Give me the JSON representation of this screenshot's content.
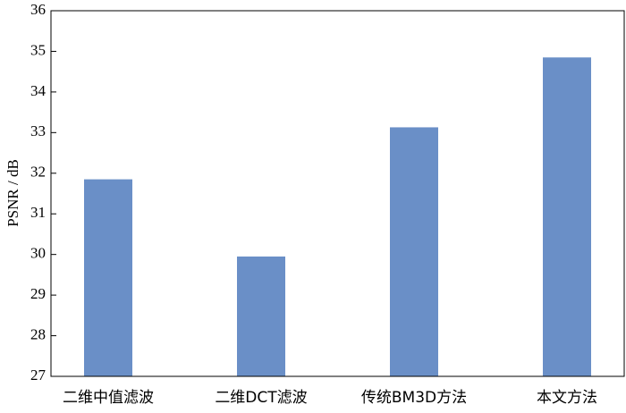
{
  "chart_data": {
    "type": "bar",
    "y_label": "PSNR / dB",
    "categories": [
      "二维中值滤波",
      "二维DCT滤波",
      "传统BM3D方法",
      "本文方法"
    ],
    "values": [
      31.85,
      29.95,
      33.13,
      34.85
    ],
    "color": "#6a8fc7",
    "ylim": [
      27,
      36
    ],
    "yticks": [
      27,
      28,
      29,
      30,
      31,
      32,
      33,
      34,
      35,
      36
    ],
    "grid": false
  }
}
